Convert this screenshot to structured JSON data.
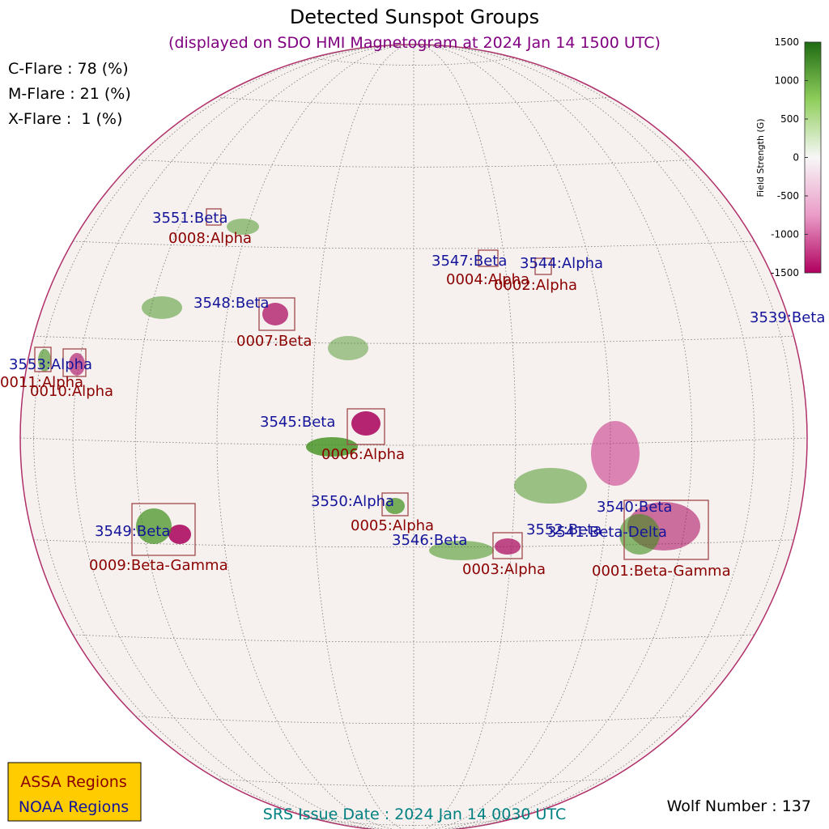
{
  "title": "Detected Sunspot Groups",
  "subtitle": "(displayed on SDO HMI Magnetogram at 2024 Jan 14 1500 UTC)",
  "flare_probabilities": [
    "C-Flare : 78 (%)",
    "M-Flare : 21 (%)",
    "X-Flare :  1 (%)"
  ],
  "colorbar": {
    "label": "Field Strength (G)",
    "range": [
      -1500,
      1500
    ],
    "ticks": [
      1500,
      1000,
      500,
      0,
      -500,
      -1000,
      -1500
    ]
  },
  "noaa_regions": [
    "3551:Beta",
    "3547:Beta",
    "3544:Alpha",
    "3548:Beta",
    "3539:Beta",
    "3553:Alpha",
    "3545:Beta",
    "3550:Alpha",
    "3549:Beta",
    "3546:Beta",
    "3540:Beta",
    "3552:Beta",
    "3541:Beta-Delta"
  ],
  "assa_regions": [
    "0008:Alpha",
    "0004:Alpha",
    "0002:Alpha",
    "0007:Beta",
    "0011:Alpha",
    "0010:Alpha",
    "0006:Alpha",
    "0005:Alpha",
    "0009:Beta-Gamma",
    "0003:Alpha",
    "0001:Beta-Gamma"
  ],
  "legend": [
    "ASSA Regions",
    "NOAA Regions"
  ],
  "footer": "SRS Issue Date : 2024 Jan 14 0030 UTC",
  "wolf_number": "Wolf Number : 137"
}
